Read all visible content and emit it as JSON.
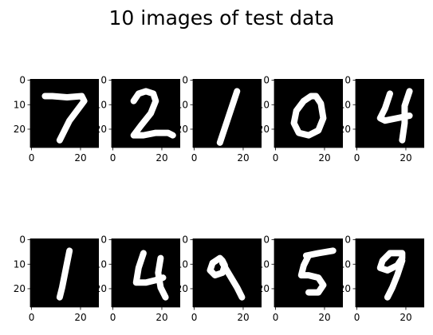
{
  "figure_title": "10 images of test data",
  "chart_data": {
    "type": "heatmap",
    "title": "10 images of test data",
    "layout": "2 rows x 5 columns",
    "colormap": "gray",
    "image_size": [
      28,
      28
    ],
    "x_ticks": [
      0,
      20
    ],
    "y_ticks": [
      0,
      10,
      20
    ],
    "xlim": [
      -0.5,
      27.5
    ],
    "ylim": [
      27.5,
      -0.5
    ],
    "images": [
      {
        "digit": "7",
        "glyph": "seven"
      },
      {
        "digit": "2",
        "glyph": "two"
      },
      {
        "digit": "1",
        "glyph": "one"
      },
      {
        "digit": "0",
        "glyph": "zero"
      },
      {
        "digit": "4",
        "glyph": "four"
      },
      {
        "digit": "1",
        "glyph": "one_b"
      },
      {
        "digit": "4",
        "glyph": "four_b"
      },
      {
        "digit": "9",
        "glyph": "nine"
      },
      {
        "digit": "5",
        "glyph": "five"
      },
      {
        "digit": "9",
        "glyph": "nine_b"
      }
    ]
  }
}
